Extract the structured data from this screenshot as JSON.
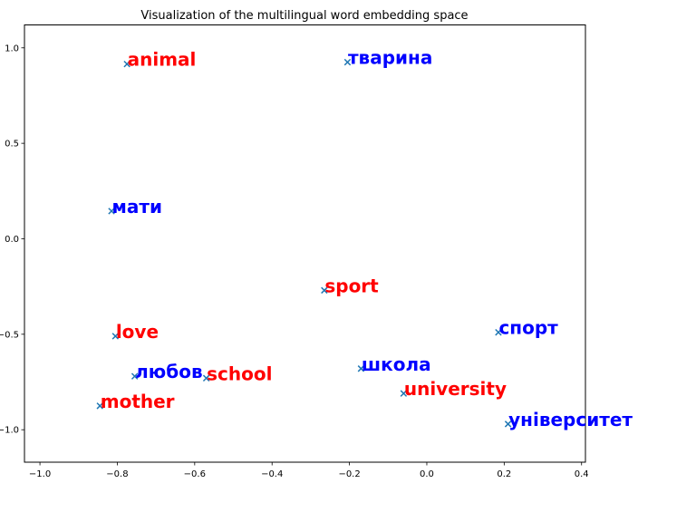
{
  "chart_data": {
    "type": "scatter",
    "title": "Visualization of the multilingual word embedding space",
    "xlabel": "",
    "ylabel": "",
    "xlim": [
      -1.04,
      0.41
    ],
    "ylim": [
      -1.17,
      1.12
    ],
    "x_ticks": [
      -1.0,
      -0.8,
      -0.6,
      -0.4,
      -0.2,
      0.0,
      0.2,
      0.4
    ],
    "x_tick_labels": [
      "−1.0",
      "−0.8",
      "−0.6",
      "−0.4",
      "−0.2",
      "0.0",
      "0.2",
      "0.4"
    ],
    "y_ticks": [
      1.0,
      0.5,
      0.0,
      -0.5,
      -1.0
    ],
    "y_tick_labels": [
      "1.0",
      "0.5",
      "0.0",
      "−0.5",
      "−1.0"
    ],
    "grid": false,
    "marker": "x",
    "marker_color": "#1f77b4",
    "points": [
      {
        "word": "animal",
        "x": -0.775,
        "y": 0.915,
        "color": "#ff0000"
      },
      {
        "word": "тварина",
        "x": -0.205,
        "y": 0.925,
        "color": "#0000ff"
      },
      {
        "word": "мати",
        "x": -0.815,
        "y": 0.145,
        "color": "#0000ff"
      },
      {
        "word": "sport",
        "x": -0.265,
        "y": -0.27,
        "color": "#ff0000"
      },
      {
        "word": "love",
        "x": -0.805,
        "y": -0.51,
        "color": "#ff0000"
      },
      {
        "word": "спорт",
        "x": 0.185,
        "y": -0.49,
        "color": "#0000ff"
      },
      {
        "word": "школа",
        "x": -0.17,
        "y": -0.68,
        "color": "#0000ff"
      },
      {
        "word": "любов",
        "x": -0.755,
        "y": -0.72,
        "color": "#0000ff"
      },
      {
        "word": "school",
        "x": -0.57,
        "y": -0.73,
        "color": "#ff0000"
      },
      {
        "word": "university",
        "x": -0.06,
        "y": -0.81,
        "color": "#ff0000"
      },
      {
        "word": "mother",
        "x": -0.845,
        "y": -0.875,
        "color": "#ff0000"
      },
      {
        "word": "університет",
        "x": 0.21,
        "y": -0.97,
        "color": "#0000ff"
      }
    ]
  }
}
